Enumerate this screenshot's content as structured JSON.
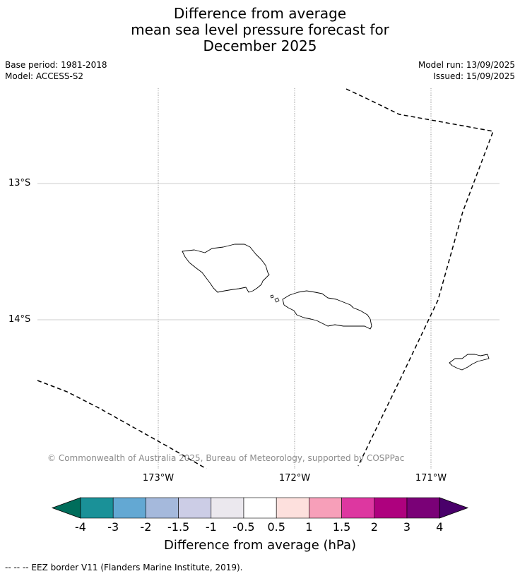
{
  "title": {
    "line1": "Difference from average",
    "line2": "mean sea level pressure forecast for",
    "line3": "December 2025"
  },
  "meta": {
    "base_period": "Base period: 1981-2018",
    "model": "Model: ACCESS-S2",
    "model_run": "Model run: 13/09/2025",
    "issued": "Issued: 15/09/2025"
  },
  "map": {
    "lat_labels": [
      "13°S",
      "14°S"
    ],
    "lon_labels": [
      "173°W",
      "172°W",
      "171°W"
    ],
    "copyright": "© Commonwealth of Australia 2025, Bureau of Meteorology, supported by COSPPac",
    "fill": "#ffffff",
    "eez_color": "#000000",
    "coast_color": "#000000"
  },
  "colorbar": {
    "label": "Difference from average (hPa)",
    "ticks": [
      "-4",
      "-3",
      "-2",
      "-1.5",
      "-1",
      "-0.5",
      "0.5",
      "1",
      "1.5",
      "2",
      "3",
      "4"
    ],
    "colors": [
      "#1a9198",
      "#63a8d3",
      "#a5b9dc",
      "#cccde6",
      "#ebe8ee",
      "#ffffff",
      "#fde0dd",
      "#f79fb9",
      "#dd37a0",
      "#ae017e",
      "#7a0177"
    ],
    "under_color": "#006d5b",
    "over_color": "#49006a"
  },
  "footnote": "--  --  -- EEZ border V11 (Flanders Marine Institute, 2019)."
}
